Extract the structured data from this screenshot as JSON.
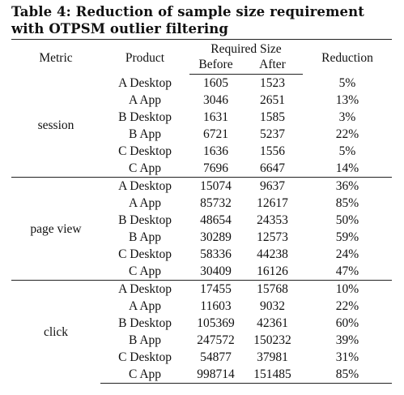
{
  "caption": "Table 4: Reduction of sample size requirement with OTPSM outlier filtering",
  "headers": {
    "metric": "Metric",
    "product": "Product",
    "required_size": "Required Size",
    "before": "Before",
    "after": "After",
    "reduction": "Reduction"
  },
  "groups": [
    {
      "metric": "session",
      "rows": [
        {
          "product": "A Desktop",
          "before": "1605",
          "after": "1523",
          "reduction": "5%"
        },
        {
          "product": "A App",
          "before": "3046",
          "after": "2651",
          "reduction": "13%"
        },
        {
          "product": "B Desktop",
          "before": "1631",
          "after": "1585",
          "reduction": "3%"
        },
        {
          "product": "B App",
          "before": "6721",
          "after": "5237",
          "reduction": "22%"
        },
        {
          "product": "C Desktop",
          "before": "1636",
          "after": "1556",
          "reduction": "5%"
        },
        {
          "product": "C App",
          "before": "7696",
          "after": "6647",
          "reduction": "14%"
        }
      ]
    },
    {
      "metric": "page view",
      "rows": [
        {
          "product": "A Desktop",
          "before": "15074",
          "after": "9637",
          "reduction": "36%"
        },
        {
          "product": "A App",
          "before": "85732",
          "after": "12617",
          "reduction": "85%"
        },
        {
          "product": "B Desktop",
          "before": "48654",
          "after": "24353",
          "reduction": "50%"
        },
        {
          "product": "B App",
          "before": "30289",
          "after": "12573",
          "reduction": "59%"
        },
        {
          "product": "C Desktop",
          "before": "58336",
          "after": "44238",
          "reduction": "24%"
        },
        {
          "product": "C App",
          "before": "30409",
          "after": "16126",
          "reduction": "47%"
        }
      ]
    },
    {
      "metric": "click",
      "rows": [
        {
          "product": "A Desktop",
          "before": "17455",
          "after": "15768",
          "reduction": "10%"
        },
        {
          "product": "A App",
          "before": "11603",
          "after": "9032",
          "reduction": "22%"
        },
        {
          "product": "B Desktop",
          "before": "105369",
          "after": "42361",
          "reduction": "60%"
        },
        {
          "product": "B App",
          "before": "247572",
          "after": "150232",
          "reduction": "39%"
        },
        {
          "product": "C Desktop",
          "before": "54877",
          "after": "37981",
          "reduction": "31%"
        },
        {
          "product": "C App",
          "before": "998714",
          "after": "151485",
          "reduction": "85%"
        }
      ]
    }
  ]
}
